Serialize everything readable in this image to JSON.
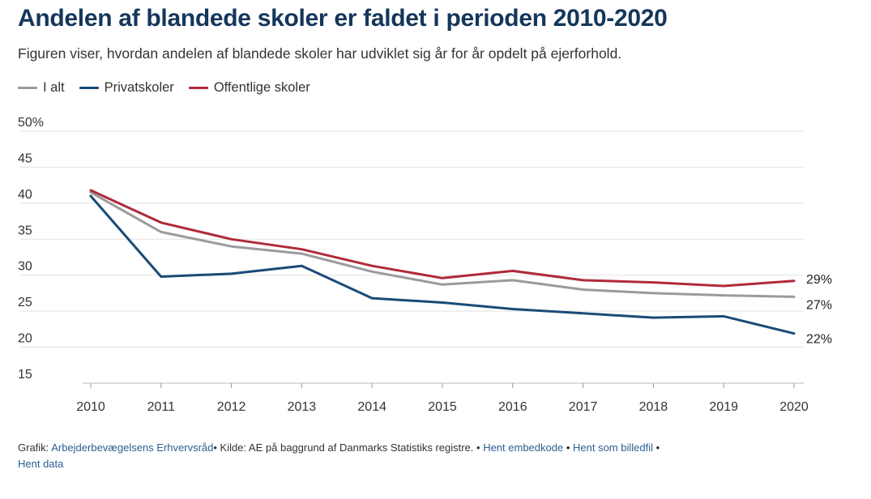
{
  "title": "Andelen af blandede skoler er faldet i perioden 2010-2020",
  "subtitle": "Figuren viser, hvordan andelen af blandede skoler har udviklet sig år for år opdelt på ejerforhold.",
  "legend": [
    {
      "label": "I alt",
      "color": "#9b9b9b"
    },
    {
      "label": "Privatskoler",
      "color": "#1a4a78"
    },
    {
      "label": "Offentlige skoler",
      "color": "#b02a3a"
    }
  ],
  "footer": {
    "grafik_prefix": "Grafik:",
    "grafik_link": "Arbejderbevægelsens Erhvervsråd",
    "kilde": "• Kilde: AE på baggrund af Danmarks Statistiks registre. •",
    "link_embed": "Hent embedkode",
    "sep1": "•",
    "link_image": "Hent som billedfil",
    "sep2": "•",
    "link_data": "Hent data"
  },
  "chart_data": {
    "type": "line",
    "x": [
      2010,
      2011,
      2012,
      2013,
      2014,
      2015,
      2016,
      2017,
      2018,
      2019,
      2020
    ],
    "ylim": [
      15,
      50
    ],
    "yticks": [
      15,
      20,
      25,
      30,
      35,
      40,
      45,
      50
    ],
    "ytick_labels": [
      "15",
      "20",
      "25",
      "30",
      "35",
      "40",
      "45",
      "50%"
    ],
    "grid": true,
    "legend_position": "top-left",
    "series": [
      {
        "name": "I alt",
        "color": "#9b9b9b",
        "values": [
          41.5,
          36.0,
          34.0,
          33.0,
          30.5,
          28.7,
          29.3,
          28.0,
          27.5,
          27.2,
          27.0
        ],
        "end_label": "27%"
      },
      {
        "name": "Privatskoler",
        "color": "#1a4a78",
        "values": [
          41.0,
          29.8,
          30.2,
          31.3,
          26.8,
          26.2,
          25.3,
          24.7,
          24.1,
          24.3,
          21.9
        ],
        "end_label": "22%"
      },
      {
        "name": "Offentlige skoler",
        "color": "#b02a3a",
        "values": [
          41.8,
          37.3,
          35.0,
          33.6,
          31.3,
          29.6,
          30.6,
          29.3,
          29.0,
          28.5,
          29.2
        ],
        "end_label": "29%"
      }
    ]
  }
}
